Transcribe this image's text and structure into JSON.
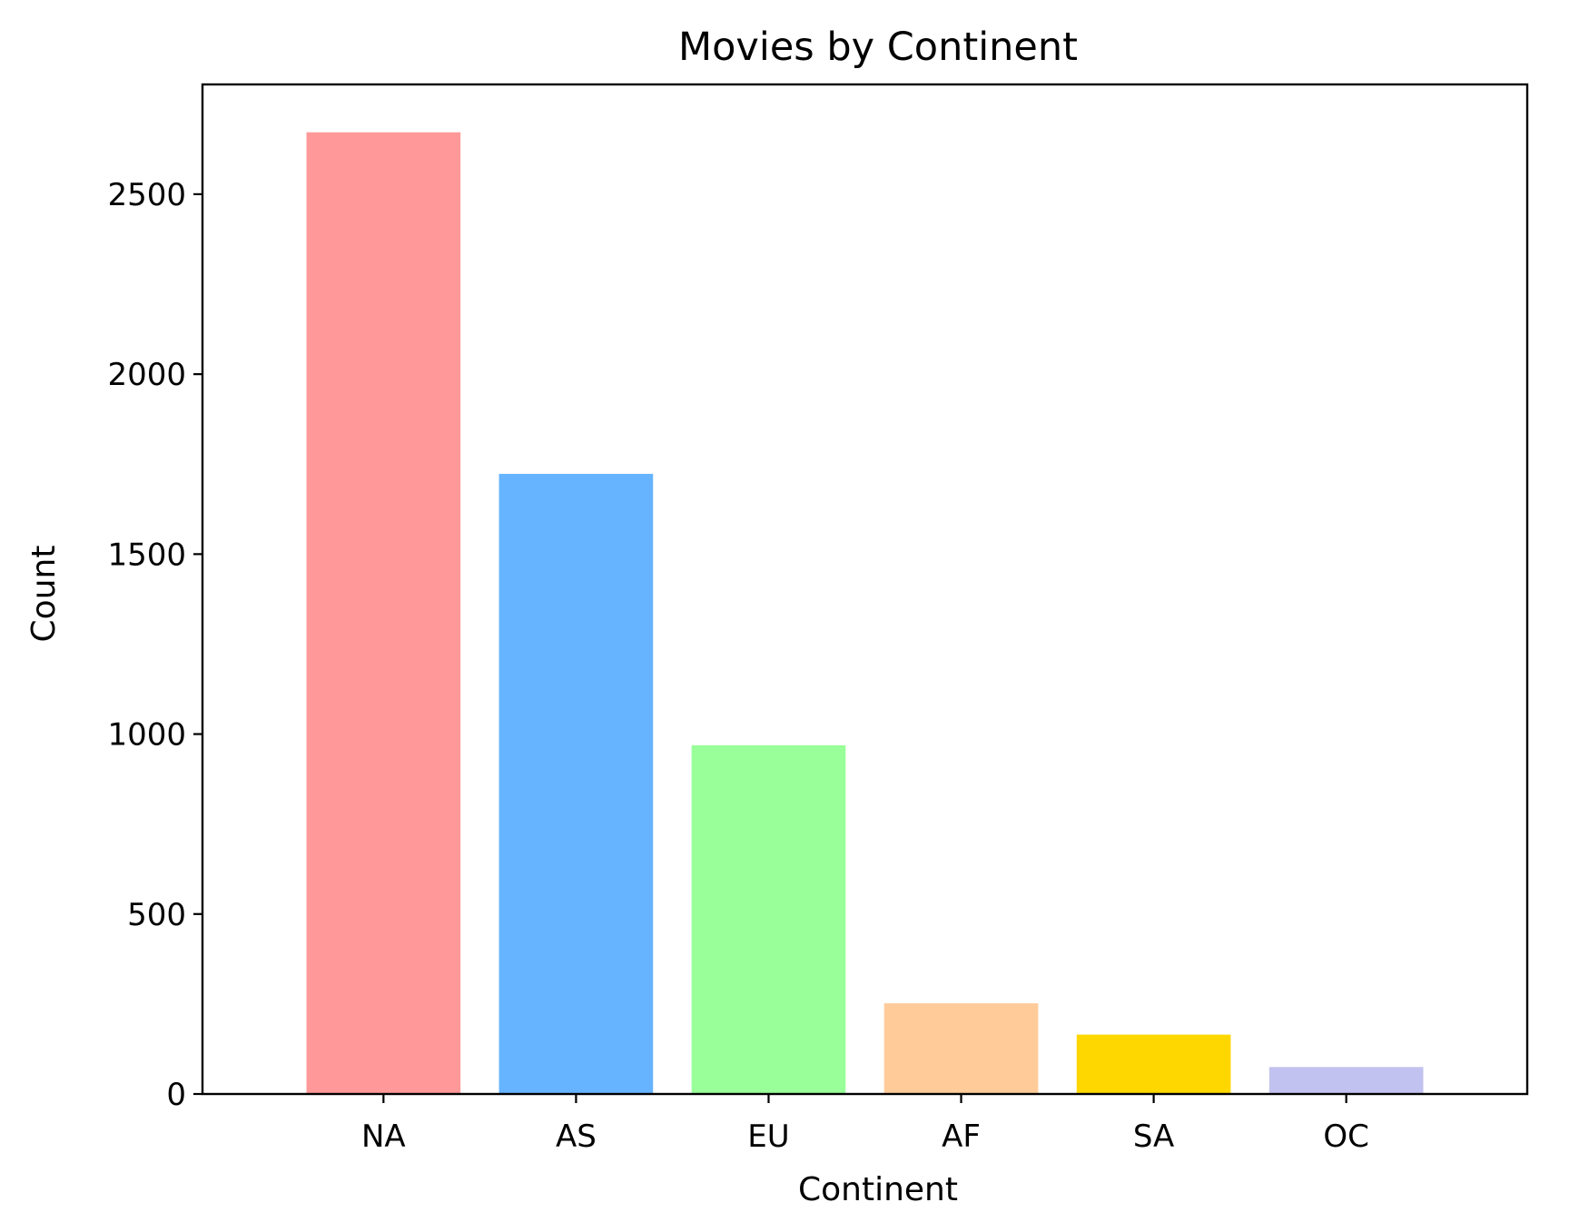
{
  "chart_data": {
    "type": "bar",
    "title": "Movies by Continent",
    "xlabel": "Continent",
    "ylabel": "Count",
    "categories": [
      "NA",
      "AS",
      "EU",
      "AF",
      "SA",
      "OC"
    ],
    "values": [
      2672,
      1723,
      969,
      252,
      165,
      75
    ],
    "colors": [
      "#ff9999",
      "#66b3ff",
      "#99ff99",
      "#ffcc99",
      "#ffd700",
      "#c2c2f0"
    ],
    "yticks": [
      0,
      500,
      1000,
      1500,
      2000,
      2500
    ],
    "ylim": [
      0,
      2805
    ],
    "grid": false,
    "legend": "none"
  }
}
